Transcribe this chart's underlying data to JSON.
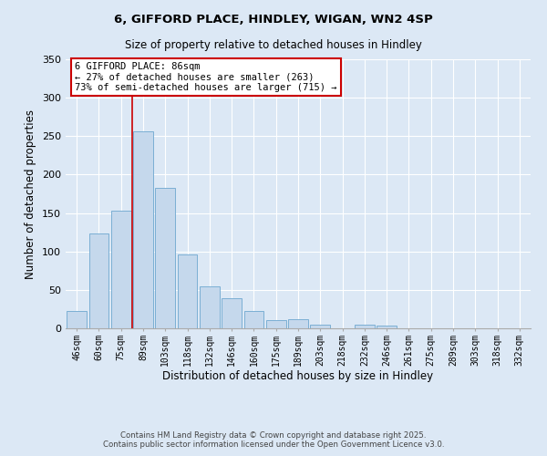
{
  "title": "6, GIFFORD PLACE, HINDLEY, WIGAN, WN2 4SP",
  "subtitle": "Size of property relative to detached houses in Hindley",
  "xlabel": "Distribution of detached houses by size in Hindley",
  "ylabel": "Number of detached properties",
  "bar_color": "#c5d8ec",
  "bar_edge_color": "#7bafd4",
  "background_color": "#dce8f5",
  "categories": [
    "46sqm",
    "60sqm",
    "75sqm",
    "89sqm",
    "103sqm",
    "118sqm",
    "132sqm",
    "146sqm",
    "160sqm",
    "175sqm",
    "189sqm",
    "203sqm",
    "218sqm",
    "232sqm",
    "246sqm",
    "261sqm",
    "275sqm",
    "289sqm",
    "303sqm",
    "318sqm",
    "332sqm"
  ],
  "values": [
    22,
    123,
    153,
    256,
    183,
    96,
    55,
    39,
    22,
    11,
    12,
    5,
    0,
    5,
    4,
    0,
    0,
    0,
    0,
    0,
    0
  ],
  "ylim": [
    0,
    350
  ],
  "yticks": [
    0,
    50,
    100,
    150,
    200,
    250,
    300,
    350
  ],
  "vline_x_index": 2.5,
  "vline_color": "#cc0000",
  "annotation_title": "6 GIFFORD PLACE: 86sqm",
  "annotation_line1": "← 27% of detached houses are smaller (263)",
  "annotation_line2": "73% of semi-detached houses are larger (715) →",
  "annotation_box_color": "#ffffff",
  "annotation_box_edge": "#cc0000",
  "footer1": "Contains HM Land Registry data © Crown copyright and database right 2025.",
  "footer2": "Contains public sector information licensed under the Open Government Licence v3.0."
}
